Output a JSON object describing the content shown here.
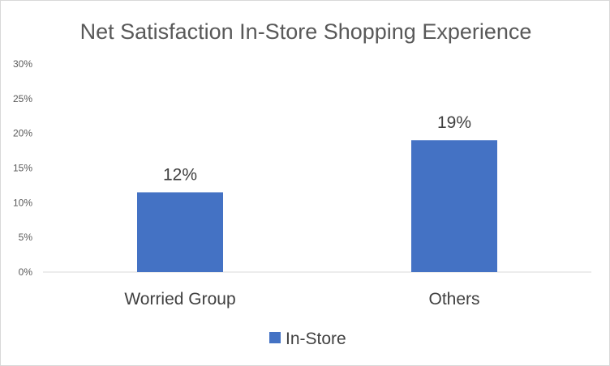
{
  "chart_data": {
    "type": "bar",
    "title": "Net Satisfaction In-Store Shopping Experience",
    "categories": [
      "Worried Group",
      "Others"
    ],
    "series": [
      {
        "name": "In-Store",
        "values": [
          0.115,
          0.19
        ],
        "data_labels": [
          "12%",
          "19%"
        ],
        "color": "#4472c4"
      }
    ],
    "ylim": [
      0,
      0.3
    ],
    "yticks": [
      0,
      0.05,
      0.1,
      0.15,
      0.2,
      0.25,
      0.3
    ],
    "ytick_labels": [
      "0%",
      "5%",
      "10%",
      "15%",
      "20%",
      "25%",
      "30%"
    ],
    "xlabel": "",
    "ylabel": "",
    "grid": false,
    "legend": "bottom"
  }
}
